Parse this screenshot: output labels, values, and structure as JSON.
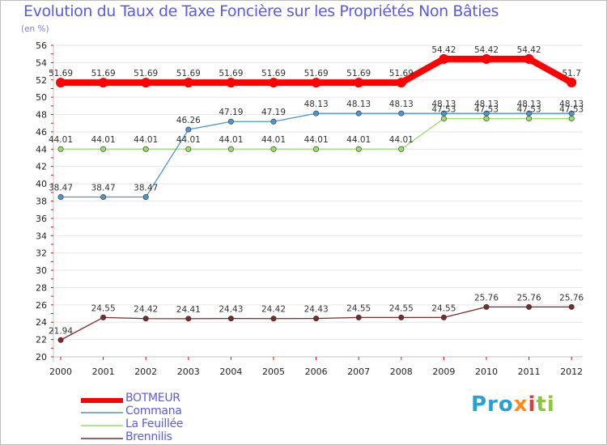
{
  "header": {
    "title": "Evolution du Taux de Taxe Foncière sur les Propriétés Non Bâties",
    "unit": "(en %)"
  },
  "logo": {
    "text": "Proxiti"
  },
  "chart_data": {
    "type": "line",
    "title": "Evolution du Taux de Taxe Foncière sur les Propriétés Non Bâties",
    "ylabel": "(en %)",
    "xlabel": "",
    "ylim": [
      20,
      56
    ],
    "y_ticks": [
      20,
      22,
      24,
      26,
      28,
      30,
      32,
      34,
      36,
      38,
      40,
      42,
      44,
      46,
      48,
      50,
      52,
      54,
      56
    ],
    "categories": [
      "2000",
      "2001",
      "2002",
      "2003",
      "2004",
      "2005",
      "2006",
      "2007",
      "2008",
      "2009",
      "2010",
      "2011",
      "2012"
    ],
    "series": [
      {
        "name": "BOTMEUR",
        "color": "#ff0000",
        "values": [
          51.69,
          51.69,
          51.69,
          51.69,
          51.69,
          51.69,
          51.69,
          51.69,
          51.69,
          54.42,
          54.42,
          54.42,
          51.7
        ],
        "labels": [
          "51.69",
          "51.69",
          "51.69",
          "51.69",
          "51.69",
          "51.69",
          "51.69",
          "51.69",
          "51.69",
          "54.42",
          "54.42",
          "54.42",
          "51.7"
        ]
      },
      {
        "name": "Commana",
        "color": "#4f94cd",
        "values": [
          38.47,
          38.47,
          38.47,
          46.26,
          47.19,
          47.19,
          48.13,
          48.13,
          48.13,
          48.13,
          48.13,
          48.13,
          48.13
        ],
        "labels": [
          "38.47",
          "38.47",
          "38.47",
          "46.26",
          "47.19",
          "47.19",
          "48.13",
          "48.13",
          "48.13",
          "48.13",
          "48.13",
          "48.13",
          "48.13"
        ]
      },
      {
        "name": "La Feuillée",
        "color": "#99dd66",
        "values": [
          44.01,
          44.01,
          44.01,
          44.01,
          44.01,
          44.01,
          44.01,
          44.01,
          44.01,
          47.53,
          47.53,
          47.53,
          47.53
        ],
        "labels": [
          "44.01",
          "44.01",
          "44.01",
          "44.01",
          "44.01",
          "44.01",
          "44.01",
          "44.01",
          "44.01",
          "47.53",
          "47.53",
          "47.53",
          "47.53"
        ]
      },
      {
        "name": "Brennilis",
        "color": "#7a2a2a",
        "values": [
          21.94,
          24.55,
          24.42,
          24.41,
          24.43,
          24.42,
          24.43,
          24.55,
          24.55,
          24.55,
          25.76,
          25.76,
          25.76
        ],
        "labels": [
          "21.94",
          "24.55",
          "24.42",
          "24.41",
          "24.43",
          "24.42",
          "24.43",
          "24.55",
          "24.55",
          "24.55",
          "25.76",
          "25.76",
          "25.76"
        ]
      }
    ]
  }
}
